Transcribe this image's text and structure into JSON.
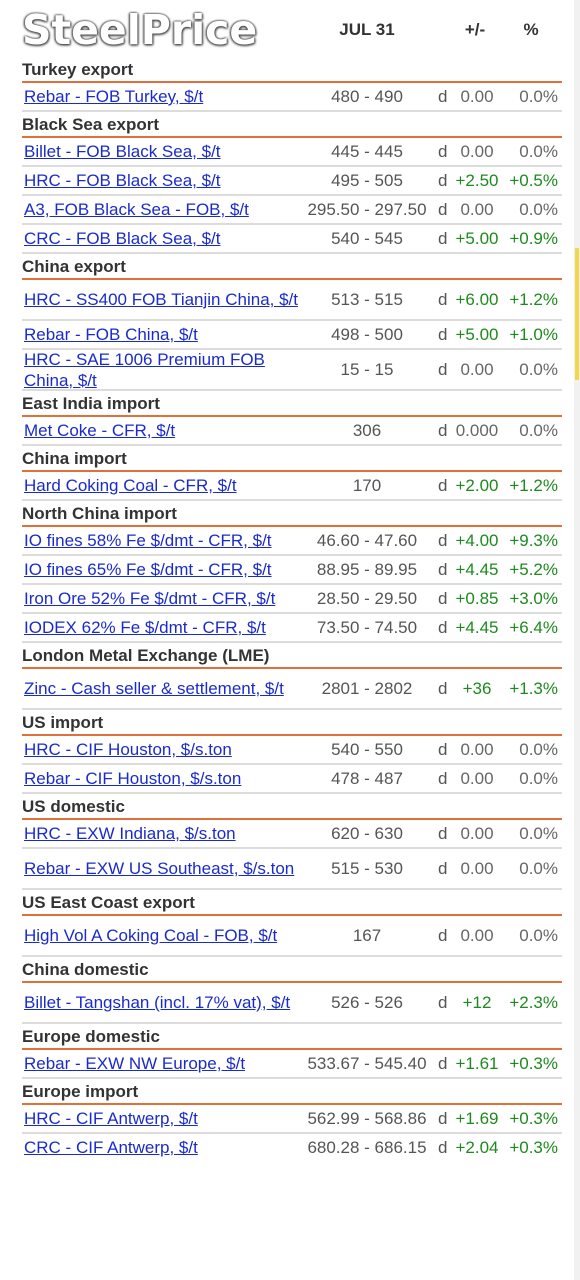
{
  "header": {
    "logo": "SteelPrice",
    "date_col": "JUL 31",
    "change_col": "+/-",
    "pct_col": "%"
  },
  "sections": [
    {
      "title": "Turkey export",
      "rows": [
        {
          "name": "Rebar - FOB Turkey, $/t",
          "price": "480 - 490",
          "mark": "d",
          "change": "0.00",
          "pct": "0.0%",
          "trend": "flat"
        }
      ]
    },
    {
      "title": "Black Sea export",
      "rows": [
        {
          "name": "Billet - FOB Black Sea, $/t",
          "price": "445 - 445",
          "mark": "d",
          "change": "0.00",
          "pct": "0.0%",
          "trend": "flat"
        },
        {
          "name": "HRC - FOB Black Sea, $/t",
          "price": "495 - 505",
          "mark": "d",
          "change": "+2.50",
          "pct": "+0.5%",
          "trend": "up"
        },
        {
          "name": "A3, FOB Black Sea - FOB, $/t",
          "price": "295.50 - 297.50",
          "mark": "d",
          "change": "0.00",
          "pct": "0.0%",
          "trend": "flat"
        },
        {
          "name": "CRC - FOB Black Sea, $/t",
          "price": "540 - 545",
          "mark": "d",
          "change": "+5.00",
          "pct": "+0.9%",
          "trend": "up"
        }
      ]
    },
    {
      "title": "China export",
      "rows": [
        {
          "name": "HRC - SS400 FOB Tianjin China, $/t",
          "price": "513 - 515",
          "mark": "d",
          "change": "+6.00",
          "pct": "+1.2%",
          "trend": "up",
          "two": true
        },
        {
          "name": "Rebar - FOB China, $/t",
          "price": "498 - 500",
          "mark": "d",
          "change": "+5.00",
          "pct": "+1.0%",
          "trend": "up"
        },
        {
          "name": "HRC - SAE 1006 Premium FOB China, $/t",
          "price": "15 - 15",
          "mark": "d",
          "change": "0.00",
          "pct": "0.0%",
          "trend": "flat",
          "two": true
        }
      ]
    },
    {
      "title": "East India import",
      "rows": [
        {
          "name": "Met Coke - CFR, $/t",
          "price": "306",
          "mark": "d",
          "change": "0.000",
          "pct": "0.0%",
          "trend": "flat"
        }
      ]
    },
    {
      "title": "China import",
      "rows": [
        {
          "name": "Hard Coking Coal - CFR, $/t",
          "price": "170",
          "mark": "d",
          "change": "+2.00",
          "pct": "+1.2%",
          "trend": "up"
        }
      ]
    },
    {
      "title": "North China import",
      "rows": [
        {
          "name": "IO fines 58% Fe $/dmt - CFR, $/t",
          "price": "46.60 - 47.60",
          "mark": "d",
          "change": "+4.00",
          "pct": "+9.3%",
          "trend": "up"
        },
        {
          "name": "IO fines 65% Fe $/dmt - CFR, $/t",
          "price": "88.95 - 89.95",
          "mark": "d",
          "change": "+4.45",
          "pct": "+5.2%",
          "trend": "up"
        },
        {
          "name": "Iron Ore 52% Fe $/dmt - CFR, $/t",
          "price": "28.50 - 29.50",
          "mark": "d",
          "change": "+0.85",
          "pct": "+3.0%",
          "trend": "up"
        },
        {
          "name": "IODEX 62% Fe $/dmt - CFR, $/t",
          "price": "73.50 - 74.50",
          "mark": "d",
          "change": "+4.45",
          "pct": "+6.4%",
          "trend": "up"
        }
      ]
    },
    {
      "title": "London Metal Exchange (LME)",
      "rows": [
        {
          "name": "Zinc - Cash seller & settlement, $/t",
          "price": "2801 - 2802",
          "mark": "d",
          "change": "+36",
          "pct": "+1.3%",
          "trend": "up",
          "two": true
        }
      ]
    },
    {
      "title": "US import",
      "rows": [
        {
          "name": "HRC - CIF Houston, $/s.ton",
          "price": "540 - 550",
          "mark": "d",
          "change": "0.00",
          "pct": "0.0%",
          "trend": "flat"
        },
        {
          "name": "Rebar - CIF Houston, $/s.ton",
          "price": "478 - 487",
          "mark": "d",
          "change": "0.00",
          "pct": "0.0%",
          "trend": "flat"
        }
      ]
    },
    {
      "title": "US domestic",
      "rows": [
        {
          "name": "HRC - EXW Indiana, $/s.ton",
          "price": "620 - 630",
          "mark": "d",
          "change": "0.00",
          "pct": "0.0%",
          "trend": "flat"
        },
        {
          "name": "Rebar - EXW US Southeast, $/s.ton",
          "price": "515 - 530",
          "mark": "d",
          "change": "0.00",
          "pct": "0.0%",
          "trend": "flat",
          "two": true
        }
      ]
    },
    {
      "title": "US East Coast export",
      "rows": [
        {
          "name": "High Vol A Coking Coal - FOB, $/t",
          "price": "167",
          "mark": "d",
          "change": "0.00",
          "pct": "0.0%",
          "trend": "flat",
          "two": true
        }
      ]
    },
    {
      "title": "China domestic",
      "rows": [
        {
          "name": "Billet - Tangshan (incl. 17% vat), $/t",
          "price": "526 - 526",
          "mark": "d",
          "change": "+12",
          "pct": "+2.3%",
          "trend": "up",
          "two": true
        }
      ]
    },
    {
      "title": "Europe domestic",
      "rows": [
        {
          "name": "Rebar - EXW NW Europe, $/t",
          "price": "533.67 - 545.40",
          "mark": "d",
          "change": "+1.61",
          "pct": "+0.3%",
          "trend": "up"
        }
      ]
    },
    {
      "title": "Europe import",
      "rows": [
        {
          "name": "HRC - CIF Antwerp, $/t",
          "price": "562.99 - 568.86",
          "mark": "d",
          "change": "+1.69",
          "pct": "+0.3%",
          "trend": "up"
        },
        {
          "name": "CRC - CIF Antwerp, $/t",
          "price": "680.28 - 686.15",
          "mark": "d",
          "change": "+2.04",
          "pct": "+0.3%",
          "trend": "up"
        }
      ]
    }
  ],
  "colors": {
    "accent_line": "#e0703b",
    "link": "#1a2bcc",
    "up": "#1d8a1d",
    "scroll_thumb": "#f5d64a"
  }
}
